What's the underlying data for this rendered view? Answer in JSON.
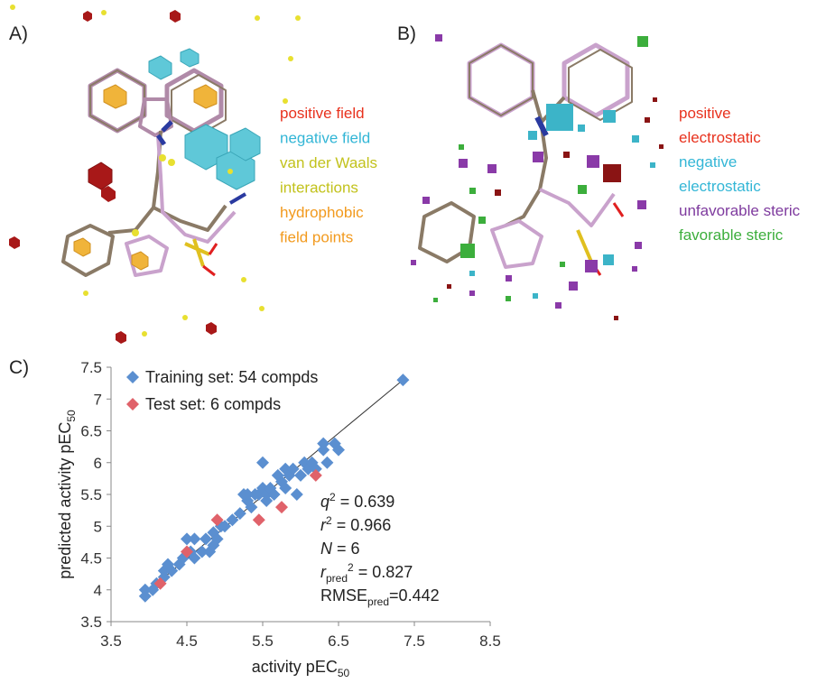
{
  "panel_a": {
    "label": "A)",
    "legend": [
      {
        "text": "positive field",
        "color": "#e8321e"
      },
      {
        "text": "negative field",
        "color": "#33b6d6"
      },
      {
        "text": "van der Waals",
        "color": "#c2c21c"
      },
      {
        "text": "interactions",
        "color": "#c2c21c"
      },
      {
        "text": "hydrophobic",
        "color": "#f29a1e"
      },
      {
        "text": "field points",
        "color": "#f29a1e"
      }
    ]
  },
  "panel_b": {
    "label": "B)",
    "legend": [
      {
        "text": "positive",
        "color": "#e8321e"
      },
      {
        "text": "electrostatic",
        "color": "#e8321e"
      },
      {
        "text": "negative",
        "color": "#33b6d6"
      },
      {
        "text": "electrostatic",
        "color": "#33b6d6"
      },
      {
        "text": "unfavorable steric",
        "color": "#7e3a9e"
      },
      {
        "text": "favorable steric",
        "color": "#3cae3c"
      }
    ]
  },
  "chart_data": {
    "type": "scatter",
    "panel_label": "C)",
    "xlabel": "activity pEC",
    "xlabel_sub": "50",
    "ylabel": "predicted activity pEC",
    "ylabel_sub": "50",
    "xlim": [
      3.5,
      8.5
    ],
    "xticks": [
      3.5,
      4.5,
      5.5,
      6.5,
      7.5,
      8.5
    ],
    "ylim": [
      3.5,
      7.5
    ],
    "yticks": [
      3.5,
      4,
      4.5,
      5,
      5.5,
      6,
      6.5,
      7,
      7.5
    ],
    "grid": false,
    "legend": "upper left",
    "series": [
      {
        "name": "Training set: 54 compds",
        "color": "#5b8fd0",
        "x": [
          3.95,
          3.95,
          4.05,
          4.1,
          4.2,
          4.2,
          4.25,
          4.3,
          4.4,
          4.45,
          4.5,
          4.55,
          4.6,
          4.7,
          4.75,
          4.8,
          4.85,
          4.85,
          4.9,
          4.95,
          5.0,
          5.1,
          5.2,
          5.25,
          5.3,
          5.35,
          5.4,
          5.45,
          5.5,
          5.5,
          5.55,
          5.55,
          5.6,
          5.65,
          5.7,
          5.75,
          5.8,
          5.8,
          5.85,
          5.9,
          5.95,
          6.0,
          6.05,
          6.1,
          6.15,
          6.2,
          6.3,
          6.3,
          6.35,
          6.45,
          6.5,
          5.3,
          4.6,
          7.35
        ],
        "values": [
          3.9,
          4.0,
          4.0,
          4.1,
          4.2,
          4.3,
          4.4,
          4.3,
          4.4,
          4.5,
          4.8,
          4.6,
          4.8,
          4.6,
          4.8,
          4.6,
          4.7,
          4.9,
          4.8,
          5.0,
          5.0,
          5.1,
          5.2,
          5.5,
          5.4,
          5.3,
          5.5,
          5.5,
          6.0,
          5.6,
          5.4,
          5.5,
          5.6,
          5.5,
          5.8,
          5.7,
          5.9,
          5.6,
          5.8,
          5.9,
          5.5,
          5.8,
          6.0,
          5.9,
          6.0,
          5.9,
          6.3,
          6.2,
          6.0,
          6.3,
          6.2,
          5.5,
          4.5,
          7.3
        ]
      },
      {
        "name": "Test set: 6 compds",
        "color": "#e0626a",
        "x": [
          4.15,
          4.5,
          4.9,
          5.45,
          5.75,
          6.2
        ],
        "values": [
          4.1,
          4.6,
          5.1,
          5.1,
          5.3,
          5.8
        ]
      }
    ],
    "fit_line": {
      "x": [
        3.9,
        7.35
      ],
      "y": [
        3.9,
        7.3
      ],
      "color": "#333333"
    },
    "annotations": [
      [
        {
          "text": "q",
          "style": "italic"
        },
        {
          "text": "2",
          "style": "sup"
        },
        {
          "text": " = 0.639",
          "style": "normal"
        }
      ],
      [
        {
          "text": "r",
          "style": "italic"
        },
        {
          "text": "2",
          "style": "sup"
        },
        {
          "text": " = 0.966",
          "style": "normal"
        }
      ],
      [
        {
          "text": "N",
          "style": "italic"
        },
        {
          "text": " = 6",
          "style": "normal"
        }
      ],
      [
        {
          "text": "r",
          "style": "italic"
        },
        {
          "text": "pred",
          "style": "sub"
        },
        {
          "text": "2",
          "style": "sup"
        },
        {
          "text": " = 0.827",
          "style": "normal"
        }
      ],
      [
        {
          "text": "RMSE",
          "style": "normal"
        },
        {
          "text": "pred",
          "style": "sub"
        },
        {
          "text": "=0.442",
          "style": "normal"
        }
      ]
    ]
  }
}
